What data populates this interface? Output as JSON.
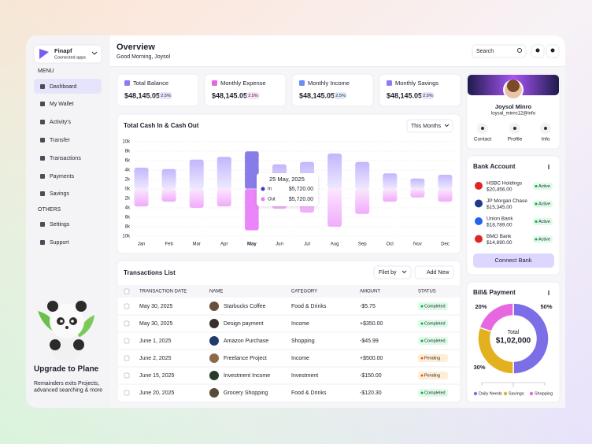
{
  "sidebar": {
    "brand": "Finapf",
    "brand_sub": "Connected apps",
    "menu_heading": "MENU",
    "menu": [
      "Dashboard",
      "My Wallet",
      "Activity's",
      "Transfer",
      "Transactions",
      "Payments",
      "Savings"
    ],
    "others_heading": "OTHERS",
    "others": [
      "Settings",
      "Support"
    ],
    "upgrade_title": "Upgrade to Plane",
    "upgrade_text": "Remainders exits Projects, advanced searching & more"
  },
  "header": {
    "title": "Overview",
    "greeting": "Good Morning, Joysol",
    "search": "Search"
  },
  "stats": [
    {
      "label": "Total Balance",
      "value": "$48,145.05",
      "change": "2.5%"
    },
    {
      "label": "Monthly Expense",
      "value": "$48,145.05",
      "change": "2.5%"
    },
    {
      "label": "Monthly Income",
      "value": "$48,145.05",
      "change": "2.5%"
    },
    {
      "label": "Monthly Savings",
      "value": "$48,145.05",
      "change": "2.5%"
    }
  ],
  "chart_data": [
    {
      "type": "bar",
      "title": "Total Cash In & Cash Out",
      "period": "This Months",
      "categories": [
        "Jan",
        "Feb",
        "Mar",
        "Apr",
        "May",
        "Jun",
        "Jul",
        "Aug",
        "Sep",
        "Oct",
        "Nov",
        "Dec"
      ],
      "series": [
        {
          "name": "In",
          "color": "#a78bfa",
          "values": [
            4500,
            4200,
            6200,
            6800,
            8000,
            5200,
            5700,
            7500,
            5700,
            3300,
            2200,
            3000
          ]
        },
        {
          "name": "Out",
          "color": "#f0abfc",
          "values": [
            -3700,
            -2700,
            -4000,
            -3700,
            -8800,
            -4200,
            -5000,
            -8000,
            -5300,
            -2700,
            -1800,
            -2700
          ]
        }
      ],
      "ylim": [
        -10000,
        10000
      ],
      "yticks": [
        {
          "value": 10000,
          "label": "10k"
        },
        {
          "value": 8000,
          "label": "8k"
        },
        {
          "value": 6000,
          "label": "6k"
        },
        {
          "value": 4000,
          "label": "4k"
        },
        {
          "value": 2000,
          "label": "2k"
        },
        {
          "value": 0,
          "label": "0k"
        },
        {
          "value": -2000,
          "label": "2k"
        },
        {
          "value": -4000,
          "label": "4k"
        },
        {
          "value": -6000,
          "label": "6k"
        },
        {
          "value": -8000,
          "label": "8k"
        },
        {
          "value": -10000,
          "label": "10k"
        }
      ],
      "grid": true,
      "tooltip": {
        "date": "25 May, 2025",
        "values": [
          "$5,720.00",
          "$5,720.00"
        ]
      }
    },
    {
      "type": "pie",
      "title": "Bill& Payment",
      "center_label": "Total",
      "center_value": "$1,02,000",
      "categories": [
        "Daily Needs",
        "Savings",
        "Shopping"
      ],
      "values": [
        50,
        30,
        20
      ],
      "value_labels": [
        "50%",
        "30%",
        "20%"
      ],
      "colors": [
        "#7c6ee6",
        "#e3b120",
        "#e667e0"
      ]
    }
  ],
  "transactions": {
    "title": "Transactions List",
    "filter": "Filet by",
    "add": "Add New",
    "columns": [
      "TRANSACTION DATE",
      "NAME",
      "CATEGORY",
      "AMOUNT",
      "STATUS"
    ],
    "rows": [
      [
        "May 30, 2025",
        "Starbucks Coffee",
        "Food & Drinks",
        "-$5.75",
        "Completed"
      ],
      [
        "May 30, 2025",
        "Design payment",
        "Income",
        "+$350.00",
        "Completed"
      ],
      [
        "June 1, 2025",
        "Amazon Purchase",
        "Shopping",
        "-$45.99",
        "Completed"
      ],
      [
        "June 2, 2025",
        "Freelance Project",
        "Income",
        "+$500.00",
        "Pending"
      ],
      [
        "June 15, 2025",
        "Investment Income",
        "Investment",
        "-$150.00",
        "Pending"
      ],
      [
        "June 20, 2025",
        "Grocery Shopping",
        "Food & Drinks",
        "-$120.30",
        "Completed"
      ]
    ]
  },
  "profile": {
    "name": "Joysol Minro",
    "email": "loysal_minro12@info",
    "actions": [
      "Contact",
      "Profile",
      "Info"
    ]
  },
  "banks": {
    "title": "Bank Account",
    "button": "Connect Bank",
    "accounts": [
      {
        "name": "HSBC Holdings",
        "amount": "$20,456.00",
        "status": "Active"
      },
      {
        "name": "JP Morgan Chase",
        "amount": "$15,345.00",
        "status": "Active"
      },
      {
        "name": "Union Bank",
        "amount": "$18,789.00",
        "status": "Active"
      },
      {
        "name": "BMO Bank",
        "amount": "$14,890.00",
        "status": "Active"
      }
    ]
  }
}
